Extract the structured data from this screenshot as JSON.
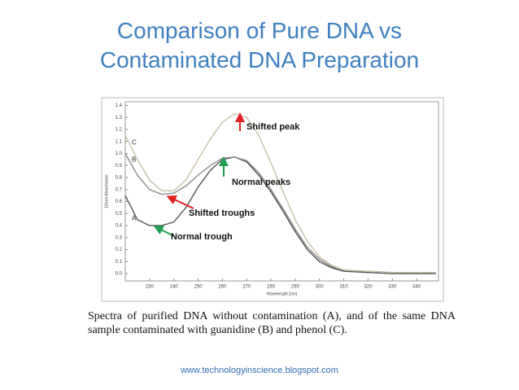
{
  "chart_data": {
    "type": "line",
    "title": [
      "Comparison of Pure DNA vs",
      "Contaminated DNA Preparation"
    ],
    "x_label": "Wavelength [nm]",
    "y_label": "10mm Absorbance",
    "x": [
      220,
      225,
      230,
      235,
      240,
      245,
      250,
      255,
      260,
      265,
      270,
      275,
      280,
      285,
      290,
      295,
      300,
      305,
      310,
      320,
      330,
      340,
      348
    ],
    "series": [
      {
        "name": "A",
        "color": "#555555",
        "values": [
          0.65,
          0.45,
          0.4,
          0.4,
          0.43,
          0.55,
          0.72,
          0.86,
          0.95,
          0.97,
          0.93,
          0.82,
          0.68,
          0.52,
          0.35,
          0.2,
          0.1,
          0.05,
          0.02,
          0.01,
          0.0,
          0.0,
          0.0
        ]
      },
      {
        "name": "B",
        "color": "#8a8a8a",
        "values": [
          1.0,
          0.82,
          0.7,
          0.66,
          0.67,
          0.73,
          0.82,
          0.9,
          0.96,
          0.97,
          0.94,
          0.84,
          0.7,
          0.54,
          0.37,
          0.22,
          0.12,
          0.06,
          0.03,
          0.02,
          0.01,
          0.01,
          0.01
        ]
      },
      {
        "name": "C",
        "color": "#c9bfa8",
        "values": [
          1.15,
          0.95,
          0.78,
          0.69,
          0.69,
          0.78,
          0.95,
          1.12,
          1.26,
          1.33,
          1.3,
          1.15,
          0.92,
          0.68,
          0.45,
          0.27,
          0.14,
          0.07,
          0.03,
          0.02,
          0.01,
          0.01,
          0.01
        ]
      }
    ],
    "xlim": [
      220,
      349
    ],
    "ylim": [
      -0.06,
      1.43
    ],
    "xticks": [
      230,
      240,
      250,
      260,
      270,
      280,
      290,
      300,
      310,
      320,
      330,
      340
    ],
    "yticks": [
      {
        "value": 0,
        "label": "0.0"
      },
      0.1,
      0.2,
      0.3,
      0.4,
      0.5,
      0.6,
      0.7,
      0.8,
      0.9,
      {
        "value": 1,
        "label": "1.0"
      },
      1.1,
      1.2,
      1.3,
      1.4
    ],
    "grid": false,
    "annotations": [
      {
        "text": "Shifted peak",
        "color": "#e02020"
      },
      {
        "text": "Normal peaks",
        "color": "#1fa050"
      },
      {
        "text": "Shifted troughs",
        "color": "#e02020"
      },
      {
        "text": "Normal trough",
        "color": "#1fa050"
      }
    ],
    "caption": "Spectra of purified DNA without contamination (A), and of the same DNA sample contaminated with guanidine (B) and phenol (C).",
    "source": "www.technologyinscience.blogspot.com"
  }
}
